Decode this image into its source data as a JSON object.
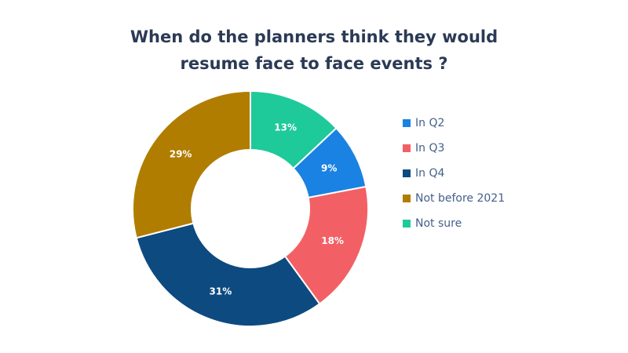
{
  "chart_data": {
    "type": "donut",
    "title": "When do the planners think they would resume face to face events ?",
    "categories": [
      "In Q2",
      "In Q3",
      "In Q4",
      "Not before 2021",
      "Not sure"
    ],
    "values": [
      9,
      18,
      31,
      29,
      13
    ],
    "value_labels": [
      "9%",
      "18%",
      "31%",
      "29%",
      "13%"
    ],
    "colors": [
      "#1a82e2",
      "#f26065",
      "#0d4a80",
      "#b07d00",
      "#1ec99a"
    ],
    "legend": "right"
  }
}
